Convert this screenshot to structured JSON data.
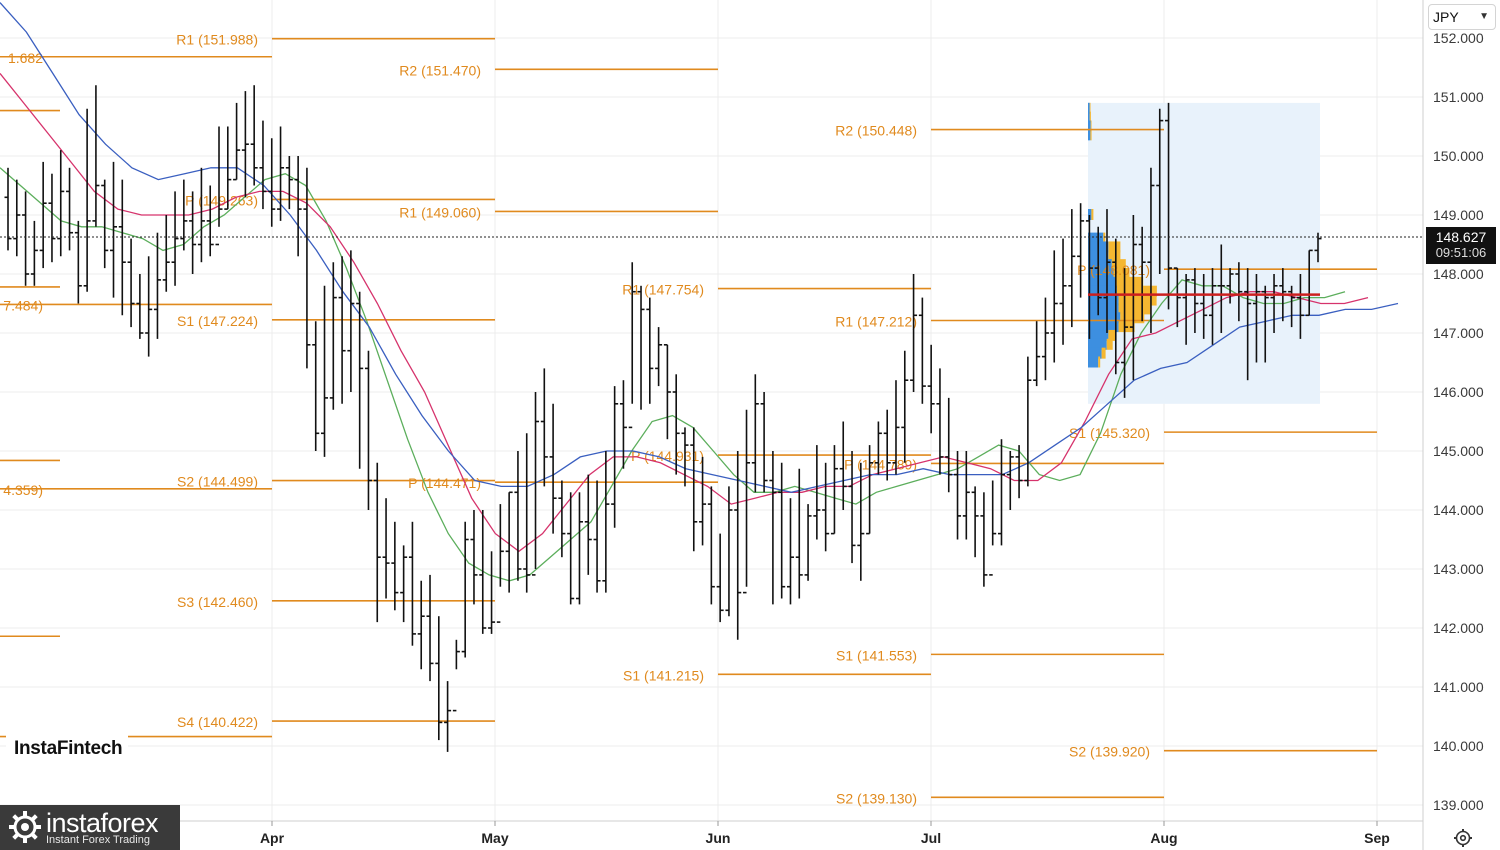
{
  "currency": "JPY",
  "current_price": "148.627",
  "countdown": "09:51:06",
  "brand": "InstaFintech",
  "logo": {
    "name": "instaforex",
    "tagline": "Instant Forex Trading",
    "icon": "gear-logo-icon"
  },
  "settings_icon": "gear-icon",
  "colors": {
    "pivot": "#e08a1e",
    "sma_fast": "#5cae5c",
    "sma_mid": "#d6336c",
    "sma_slow": "#3a5fc0",
    "profile_buy": "#f5b731",
    "profile_sell": "#3d8fe0",
    "poc": "#cc1f1f",
    "profile_bg": "#e8f2fb"
  },
  "chart_data": {
    "type": "ohlc",
    "x_ticks": [
      "Apr",
      "May",
      "Jun",
      "Jul",
      "Aug",
      "Sep"
    ],
    "y_ticks": [
      "139.000",
      "140.000",
      "141.000",
      "142.000",
      "143.000",
      "144.000",
      "145.000",
      "146.000",
      "147.000",
      "148.000",
      "149.000",
      "150.000",
      "151.000",
      "152.000"
    ],
    "ylim": [
      138.75,
      152.35
    ],
    "pivot_levels": [
      {
        "label": "1.682",
        "value": 151.682,
        "x": [
          "Mar",
          "Apr"
        ]
      },
      {
        "label": "R1 (151.988)",
        "value": 151.988,
        "x": [
          "Apr",
          "May"
        ]
      },
      {
        "label": "R2 (151.470)",
        "value": 151.47,
        "x": [
          "May",
          "Jun"
        ]
      },
      {
        "label": "R2 (150.448)",
        "value": 150.448,
        "x": [
          "Jul",
          "Aug"
        ]
      },
      {
        "label": "",
        "value": 150.77,
        "x": [
          "Mar",
          "Mar"
        ]
      },
      {
        "label": "P (149.263)",
        "value": 149.263,
        "x": [
          "Apr",
          "May"
        ]
      },
      {
        "label": "R1 (149.060)",
        "value": 149.06,
        "x": [
          "May",
          "Jun"
        ]
      },
      {
        "label": "P (148.081)",
        "value": 148.081,
        "x": [
          "Aug",
          "Sep"
        ]
      },
      {
        "label": "R1 (147.754)",
        "value": 147.754,
        "x": [
          "Jun",
          "Jul"
        ]
      },
      {
        "label": "",
        "value": 147.78,
        "x": [
          "Mar",
          "Mar"
        ]
      },
      {
        "label": "7.484)",
        "value": 147.484,
        "x": [
          "Mar",
          "Apr"
        ]
      },
      {
        "label": "S1 (147.224)",
        "value": 147.224,
        "x": [
          "Apr",
          "May"
        ]
      },
      {
        "label": "R1 (147.212)",
        "value": 147.212,
        "x": [
          "Jul",
          "Aug"
        ]
      },
      {
        "label": "S1 (145.320)",
        "value": 145.32,
        "x": [
          "Aug",
          "Sep"
        ]
      },
      {
        "label": "P (144.931)",
        "value": 144.931,
        "x": [
          "Jun",
          "Jul"
        ]
      },
      {
        "label": "P (144.789)",
        "value": 144.789,
        "x": [
          "Jul",
          "Aug"
        ]
      },
      {
        "label": "",
        "value": 144.84,
        "x": [
          "Mar",
          "Mar"
        ]
      },
      {
        "label": "S2 (144.499)",
        "value": 144.499,
        "x": [
          "Apr",
          "May"
        ]
      },
      {
        "label": "P (144.471)",
        "value": 144.471,
        "x": [
          "May",
          "Jun"
        ]
      },
      {
        "label": "4.359)",
        "value": 144.359,
        "x": [
          "Mar",
          "Apr"
        ]
      },
      {
        "label": "S3 (142.460)",
        "value": 142.46,
        "x": [
          "Apr",
          "May"
        ]
      },
      {
        "label": "",
        "value": 141.86,
        "x": [
          "Mar",
          "Mar"
        ]
      },
      {
        "label": "S1 (141.553)",
        "value": 141.553,
        "x": [
          "Jul",
          "Aug"
        ]
      },
      {
        "label": "S1 (141.215)",
        "value": 141.215,
        "x": [
          "Jun",
          "Jul"
        ]
      },
      {
        "label": "S4 (140.422)",
        "value": 140.422,
        "x": [
          "Apr",
          "May"
        ]
      },
      {
        "label": "",
        "value": 140.16,
        "x": [
          "Mar",
          "Apr"
        ]
      },
      {
        "label": "S2 (139.920)",
        "value": 139.92,
        "x": [
          "Aug",
          "Sep"
        ]
      },
      {
        "label": "S2 (139.130)",
        "value": 139.13,
        "x": [
          "Jul",
          "Aug"
        ]
      }
    ],
    "bars": [
      [
        149.3,
        148.6,
        149.8,
        148.4
      ],
      [
        148.6,
        149.0,
        149.6,
        148.3
      ],
      [
        149.0,
        148.0,
        149.4,
        147.8
      ],
      [
        148.0,
        148.4,
        148.9,
        147.8
      ],
      [
        148.4,
        149.2,
        149.9,
        148.1
      ],
      [
        149.2,
        148.6,
        149.7,
        148.2
      ],
      [
        148.6,
        149.4,
        150.1,
        148.3
      ],
      [
        149.4,
        148.7,
        149.8,
        148.4
      ],
      [
        148.7,
        147.8,
        148.9,
        147.5
      ],
      [
        147.8,
        148.9,
        150.8,
        147.7
      ],
      [
        148.9,
        149.5,
        151.2,
        148.8
      ],
      [
        149.5,
        148.4,
        149.6,
        148.1
      ],
      [
        148.4,
        148.8,
        149.9,
        147.6
      ],
      [
        148.8,
        148.2,
        149.6,
        147.3
      ],
      [
        148.2,
        147.5,
        148.6,
        147.1
      ],
      [
        147.5,
        147.0,
        148.0,
        146.9
      ],
      [
        147.0,
        147.4,
        148.3,
        146.6
      ],
      [
        147.4,
        147.9,
        148.7,
        146.9
      ],
      [
        147.9,
        148.2,
        149.0,
        147.7
      ],
      [
        148.2,
        148.6,
        149.4,
        147.8
      ],
      [
        148.6,
        148.9,
        149.6,
        148.4
      ],
      [
        148.9,
        148.5,
        149.4,
        148.0
      ],
      [
        148.5,
        148.9,
        149.8,
        148.2
      ],
      [
        148.9,
        148.5,
        149.5,
        148.3
      ],
      [
        148.5,
        149.1,
        150.5,
        148.8
      ],
      [
        149.1,
        149.6,
        150.5,
        149.1
      ],
      [
        149.6,
        150.1,
        150.9,
        149.6
      ],
      [
        150.1,
        150.2,
        151.1,
        149.3
      ],
      [
        150.2,
        149.8,
        151.2,
        149.5
      ],
      [
        149.8,
        149.4,
        150.6,
        149.1
      ],
      [
        149.4,
        149.1,
        150.3,
        148.8
      ],
      [
        149.1,
        149.8,
        150.5,
        148.9
      ],
      [
        149.8,
        149.6,
        150.0,
        149.1
      ],
      [
        149.6,
        149.1,
        150.0,
        148.3
      ],
      [
        149.1,
        146.8,
        149.8,
        146.4
      ],
      [
        146.8,
        145.3,
        147.2,
        145.0
      ],
      [
        145.3,
        145.9,
        147.8,
        144.9
      ],
      [
        145.9,
        147.6,
        148.2,
        145.7
      ],
      [
        147.6,
        146.7,
        148.3,
        145.8
      ],
      [
        146.7,
        147.5,
        148.4,
        146.0
      ],
      [
        147.5,
        146.4,
        147.7,
        144.7
      ],
      [
        146.4,
        144.5,
        146.7,
        144.0
      ],
      [
        144.5,
        143.2,
        144.8,
        142.1
      ],
      [
        143.2,
        143.1,
        144.2,
        142.5
      ],
      [
        143.1,
        142.6,
        143.8,
        142.3
      ],
      [
        142.6,
        143.2,
        143.4,
        142.1
      ],
      [
        143.2,
        141.9,
        143.8,
        141.7
      ],
      [
        141.9,
        142.2,
        142.8,
        141.3
      ],
      [
        142.2,
        141.4,
        142.9,
        141.1
      ],
      [
        141.4,
        140.4,
        142.2,
        140.1
      ],
      [
        140.4,
        140.6,
        141.1,
        139.9
      ],
      [
        140.6,
        141.6,
        141.8,
        141.3
      ],
      [
        141.6,
        143.5,
        143.8,
        141.5
      ],
      [
        143.5,
        142.9,
        144.0,
        142.4
      ],
      [
        142.9,
        142.0,
        144.0,
        141.9
      ],
      [
        142.0,
        142.1,
        143.3,
        141.9
      ],
      [
        142.1,
        143.3,
        144.1,
        142.7
      ],
      [
        143.3,
        144.3,
        144.3,
        142.6
      ],
      [
        144.3,
        143.0,
        145.0,
        142.8
      ],
      [
        143.0,
        142.9,
        145.3,
        142.6
      ],
      [
        142.9,
        145.5,
        146.0,
        143.0
      ],
      [
        145.5,
        144.9,
        146.4,
        144.4
      ],
      [
        144.9,
        144.2,
        145.8,
        143.6
      ],
      [
        144.2,
        143.6,
        144.5,
        143.2
      ],
      [
        143.6,
        142.5,
        144.3,
        142.4
      ],
      [
        142.5,
        143.8,
        144.3,
        142.4
      ],
      [
        143.8,
        143.5,
        144.6,
        142.9
      ],
      [
        143.5,
        142.8,
        144.5,
        142.6
      ],
      [
        142.8,
        144.1,
        145.0,
        142.6
      ],
      [
        144.1,
        145.8,
        146.1,
        143.7
      ],
      [
        145.8,
        145.4,
        146.2,
        144.7
      ],
      [
        145.4,
        147.7,
        148.2,
        145.8
      ],
      [
        147.7,
        147.4,
        147.8,
        145.7
      ],
      [
        147.4,
        146.4,
        147.6,
        145.8
      ],
      [
        146.4,
        146.8,
        147.1,
        146.1
      ],
      [
        146.8,
        146.0,
        146.8,
        145.2
      ],
      [
        146.0,
        145.3,
        146.3,
        144.6
      ],
      [
        145.3,
        145.1,
        145.4,
        144.4
      ],
      [
        145.1,
        143.8,
        145.4,
        143.3
      ],
      [
        143.8,
        144.1,
        144.9,
        143.4
      ],
      [
        144.1,
        142.7,
        144.4,
        142.4
      ],
      [
        142.7,
        142.3,
        143.6,
        142.1
      ],
      [
        142.3,
        144.0,
        144.4,
        142.2
      ],
      [
        144.0,
        142.6,
        145.0,
        141.8
      ],
      [
        142.6,
        144.8,
        145.7,
        142.7
      ],
      [
        144.8,
        145.8,
        146.3,
        144.3
      ],
      [
        145.8,
        144.5,
        146.0,
        144.3
      ],
      [
        144.5,
        144.3,
        145.0,
        142.4
      ],
      [
        144.3,
        142.7,
        144.8,
        142.5
      ],
      [
        142.7,
        143.2,
        144.2,
        142.4
      ],
      [
        143.2,
        142.9,
        144.7,
        142.5
      ],
      [
        142.9,
        143.9,
        144.1,
        142.8
      ],
      [
        143.9,
        144.0,
        145.1,
        143.5
      ],
      [
        144.0,
        143.6,
        144.8,
        143.3
      ],
      [
        143.6,
        144.7,
        145.1,
        143.6
      ],
      [
        144.7,
        144.4,
        145.5,
        144.0
      ],
      [
        144.4,
        143.4,
        145.0,
        143.1
      ],
      [
        143.4,
        143.6,
        144.8,
        142.8
      ],
      [
        143.6,
        144.8,
        145.1,
        143.6
      ],
      [
        144.8,
        145.3,
        145.5,
        144.6
      ],
      [
        145.3,
        144.8,
        145.7,
        144.5
      ],
      [
        144.8,
        145.4,
        146.2,
        144.6
      ],
      [
        145.4,
        146.2,
        146.7,
        144.8
      ],
      [
        146.2,
        147.3,
        148.0,
        146.0
      ],
      [
        147.3,
        146.1,
        147.6,
        145.8
      ],
      [
        146.1,
        145.8,
        146.8,
        145.3
      ],
      [
        145.8,
        144.9,
        146.4,
        144.6
      ],
      [
        144.9,
        144.6,
        145.9,
        144.3
      ],
      [
        144.6,
        143.9,
        145.0,
        143.5
      ],
      [
        143.9,
        144.3,
        145.0,
        143.5
      ],
      [
        144.3,
        143.9,
        144.4,
        143.2
      ],
      [
        143.9,
        142.9,
        144.3,
        142.7
      ],
      [
        142.9,
        143.6,
        144.5,
        143.4
      ],
      [
        143.6,
        144.6,
        145.2,
        143.4
      ],
      [
        144.6,
        144.9,
        145.0,
        144.0
      ],
      [
        144.9,
        144.5,
        145.1,
        144.2
      ],
      [
        144.5,
        146.2,
        146.6,
        144.4
      ],
      [
        146.2,
        146.6,
        147.2,
        146.1
      ],
      [
        146.6,
        147.0,
        147.6,
        146.2
      ],
      [
        147.0,
        147.5,
        148.4,
        146.5
      ],
      [
        147.5,
        147.8,
        148.6,
        146.8
      ],
      [
        147.8,
        148.3,
        149.1,
        147.1
      ],
      [
        148.3,
        148.9,
        149.2,
        147.6
      ],
      [
        148.9,
        148.1,
        149.0,
        146.9
      ],
      [
        148.1,
        147.6,
        148.8,
        147.3
      ],
      [
        147.6,
        148.2,
        149.1,
        147.0
      ],
      [
        148.2,
        146.5,
        148.6,
        146.3
      ],
      [
        146.5,
        147.1,
        148.1,
        145.9
      ],
      [
        147.1,
        148.5,
        149.0,
        146.2
      ],
      [
        148.5,
        148.2,
        148.8,
        147.2
      ],
      [
        148.2,
        149.5,
        149.8,
        147.0
      ],
      [
        149.5,
        150.6,
        150.8,
        148.0
      ],
      [
        150.6,
        148.1,
        150.9,
        147.4
      ],
      [
        148.1,
        147.6,
        148.1,
        147.1
      ],
      [
        147.6,
        147.9,
        148.0,
        146.8
      ],
      [
        147.9,
        147.5,
        148.1,
        147.0
      ],
      [
        147.5,
        147.3,
        148.0,
        146.9
      ],
      [
        147.3,
        147.8,
        148.1,
        146.8
      ],
      [
        147.8,
        147.8,
        148.5,
        147.0
      ],
      [
        147.8,
        148.0,
        148.1,
        147.5
      ],
      [
        148.0,
        147.7,
        148.2,
        147.2
      ],
      [
        147.7,
        147.5,
        148.1,
        146.2
      ],
      [
        147.5,
        147.7,
        148.0,
        146.5
      ],
      [
        147.7,
        147.6,
        147.8,
        146.5
      ],
      [
        147.6,
        147.8,
        148.0,
        147.0
      ],
      [
        147.8,
        147.7,
        148.1,
        147.2
      ],
      [
        147.7,
        147.6,
        147.8,
        147.1
      ],
      [
        147.6,
        147.3,
        148.0,
        146.9
      ],
      [
        147.3,
        148.4,
        148.4,
        147.3
      ],
      [
        148.4,
        148.6,
        148.7,
        148.2
      ]
    ],
    "sma_fast": [
      149.8,
      149.5,
      149.2,
      148.9,
      148.8,
      148.8,
      148.7,
      148.6,
      148.4,
      148.5,
      148.8,
      149.0,
      149.3,
      149.6,
      149.7,
      149.5,
      148.9,
      148.1,
      147.2,
      146.2,
      145.2,
      144.3,
      143.6,
      143.1,
      142.9,
      142.8,
      142.9,
      143.2,
      143.5,
      143.8,
      144.4,
      145.0,
      145.5,
      145.6,
      145.4,
      145.0,
      144.6,
      144.3,
      144.3,
      144.4,
      144.3,
      144.2,
      144.1,
      144.3,
      144.4,
      144.5,
      144.6,
      144.7,
      144.9,
      145.1,
      145.0,
      144.6,
      144.5,
      144.6,
      145.3,
      146.3,
      147.0,
      147.5,
      147.9,
      147.8,
      147.8,
      147.6,
      147.5,
      147.5,
      147.6,
      147.6,
      147.7
    ],
    "sma_mid": [
      151.4,
      150.9,
      150.4,
      149.9,
      149.4,
      149.1,
      149.0,
      149.0,
      149.0,
      149.1,
      149.3,
      149.4,
      149.4,
      149.2,
      148.8,
      148.2,
      147.5,
      146.7,
      146.0,
      145.1,
      144.2,
      143.6,
      143.3,
      143.6,
      144.1,
      144.6,
      144.9,
      144.9,
      144.8,
      144.6,
      144.4,
      144.1,
      144.2,
      144.3,
      144.3,
      144.4,
      144.4,
      144.6,
      144.7,
      144.8,
      144.9,
      144.8,
      144.7,
      144.5,
      144.5,
      144.8,
      145.5,
      146.3,
      146.9,
      147.0,
      147.2,
      147.4,
      147.6,
      147.7,
      147.7,
      147.6,
      147.5,
      147.5,
      147.6
    ],
    "sma_slow": [
      152.6,
      152.1,
      151.4,
      150.7,
      150.2,
      149.8,
      149.6,
      149.7,
      149.8,
      149.8,
      149.5,
      149.0,
      148.4,
      147.7,
      147.1,
      146.3,
      145.6,
      145.0,
      144.5,
      144.4,
      144.4,
      144.6,
      144.9,
      145.0,
      145.0,
      144.9,
      144.7,
      144.6,
      144.5,
      144.4,
      144.3,
      144.4,
      144.5,
      144.6,
      144.6,
      144.7,
      144.6,
      144.6,
      144.6,
      144.8,
      145.1,
      145.4,
      145.8,
      146.2,
      146.4,
      146.5,
      146.8,
      147.1,
      147.2,
      147.3,
      147.3,
      147.4,
      147.4,
      147.5
    ],
    "volume_profile": {
      "price_range": [
        145.8,
        150.9
      ],
      "poc": 147.65,
      "rows": [
        [
          150.8,
          0.05,
          0.02
        ],
        [
          150.65,
          0.05,
          0.03
        ],
        [
          150.5,
          0.08,
          0.02
        ],
        [
          150.35,
          0.07,
          0.03
        ],
        [
          149.0,
          0.1,
          0.05
        ],
        [
          148.6,
          0.45,
          0.05
        ],
        [
          148.45,
          0.6,
          0.3
        ],
        [
          148.3,
          0.6,
          0.3
        ],
        [
          148.15,
          0.7,
          0.35
        ],
        [
          148.0,
          0.75,
          0.4
        ],
        [
          147.85,
          0.8,
          0.7
        ],
        [
          147.7,
          0.85,
          1.0
        ],
        [
          147.55,
          0.9,
          0.95
        ],
        [
          147.4,
          0.9,
          0.8
        ],
        [
          147.25,
          0.95,
          0.6
        ],
        [
          147.1,
          0.9,
          0.4
        ],
        [
          146.95,
          0.6,
          0.2
        ],
        [
          146.8,
          0.55,
          0.15
        ],
        [
          146.65,
          0.4,
          0.1
        ],
        [
          146.5,
          0.3,
          0.05
        ]
      ]
    }
  }
}
